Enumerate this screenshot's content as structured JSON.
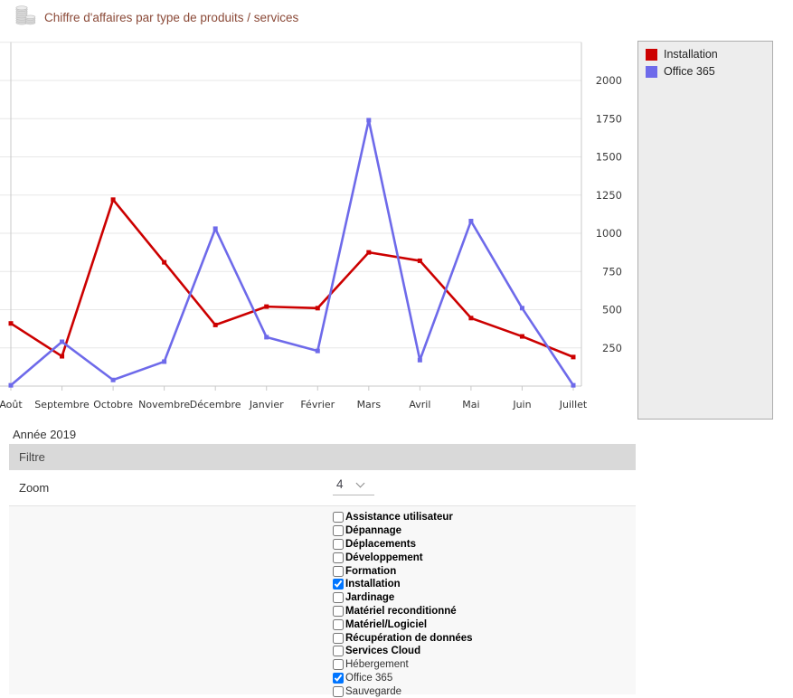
{
  "header": {
    "title": "Chiffre d'affaires par type de produits / services",
    "icon": "coins-stack-icon"
  },
  "chart_data": {
    "type": "line",
    "title": "Chiffre d'affaires par type de produits / services",
    "categories": [
      "Août",
      "Septembre",
      "Octobre",
      "Novembre",
      "Décembre",
      "Janvier",
      "Février",
      "Mars",
      "Avril",
      "Mai",
      "Juin",
      "Juillet"
    ],
    "series": [
      {
        "name": "Installation",
        "color": "#cc0000",
        "values": [
          410,
          195,
          1220,
          810,
          400,
          520,
          510,
          875,
          820,
          445,
          325,
          190
        ]
      },
      {
        "name": "Office 365",
        "color": "#6e6aea",
        "values": [
          5,
          290,
          40,
          160,
          1030,
          320,
          230,
          1740,
          170,
          1080,
          510,
          5
        ]
      }
    ],
    "xlabel": "",
    "ylabel": "",
    "y_ticks": [
      250,
      500,
      750,
      1000,
      1250,
      1500,
      1750,
      2000
    ],
    "ylim": [
      0,
      2250
    ],
    "grid": true,
    "legend_position": "right",
    "legend_entries": [
      "Installation",
      "Office 365"
    ]
  },
  "filter": {
    "year_label": "Année 2019",
    "section_title": "Filtre",
    "zoom_label": "Zoom",
    "zoom_value": "4",
    "items": [
      {
        "label": "Assistance utilisateur",
        "checked": false,
        "bold": true
      },
      {
        "label": "Dépannage",
        "checked": false,
        "bold": true
      },
      {
        "label": "Déplacements",
        "checked": false,
        "bold": true
      },
      {
        "label": "Développement",
        "checked": false,
        "bold": true
      },
      {
        "label": "Formation",
        "checked": false,
        "bold": true
      },
      {
        "label": "Installation",
        "checked": true,
        "bold": true
      },
      {
        "label": "Jardinage",
        "checked": false,
        "bold": true
      },
      {
        "label": "Matériel reconditionné",
        "checked": false,
        "bold": true
      },
      {
        "label": "Matériel/Logiciel",
        "checked": false,
        "bold": true
      },
      {
        "label": "Récupération de données",
        "checked": false,
        "bold": true
      },
      {
        "label": "Services Cloud",
        "checked": false,
        "bold": true
      },
      {
        "label": "Hébergement",
        "checked": false,
        "bold": false
      },
      {
        "label": "Office 365",
        "checked": true,
        "bold": false
      },
      {
        "label": "Sauvegarde",
        "checked": false,
        "bold": false
      }
    ]
  },
  "colors": {
    "title_text": "#8b4a38",
    "grid_line": "#e7e7e7",
    "axis_line": "#c9c9c9",
    "legend_bg": "#ededed",
    "filter_bar_bg": "#d9d9d9",
    "panel_bg": "#f8f8f8"
  }
}
